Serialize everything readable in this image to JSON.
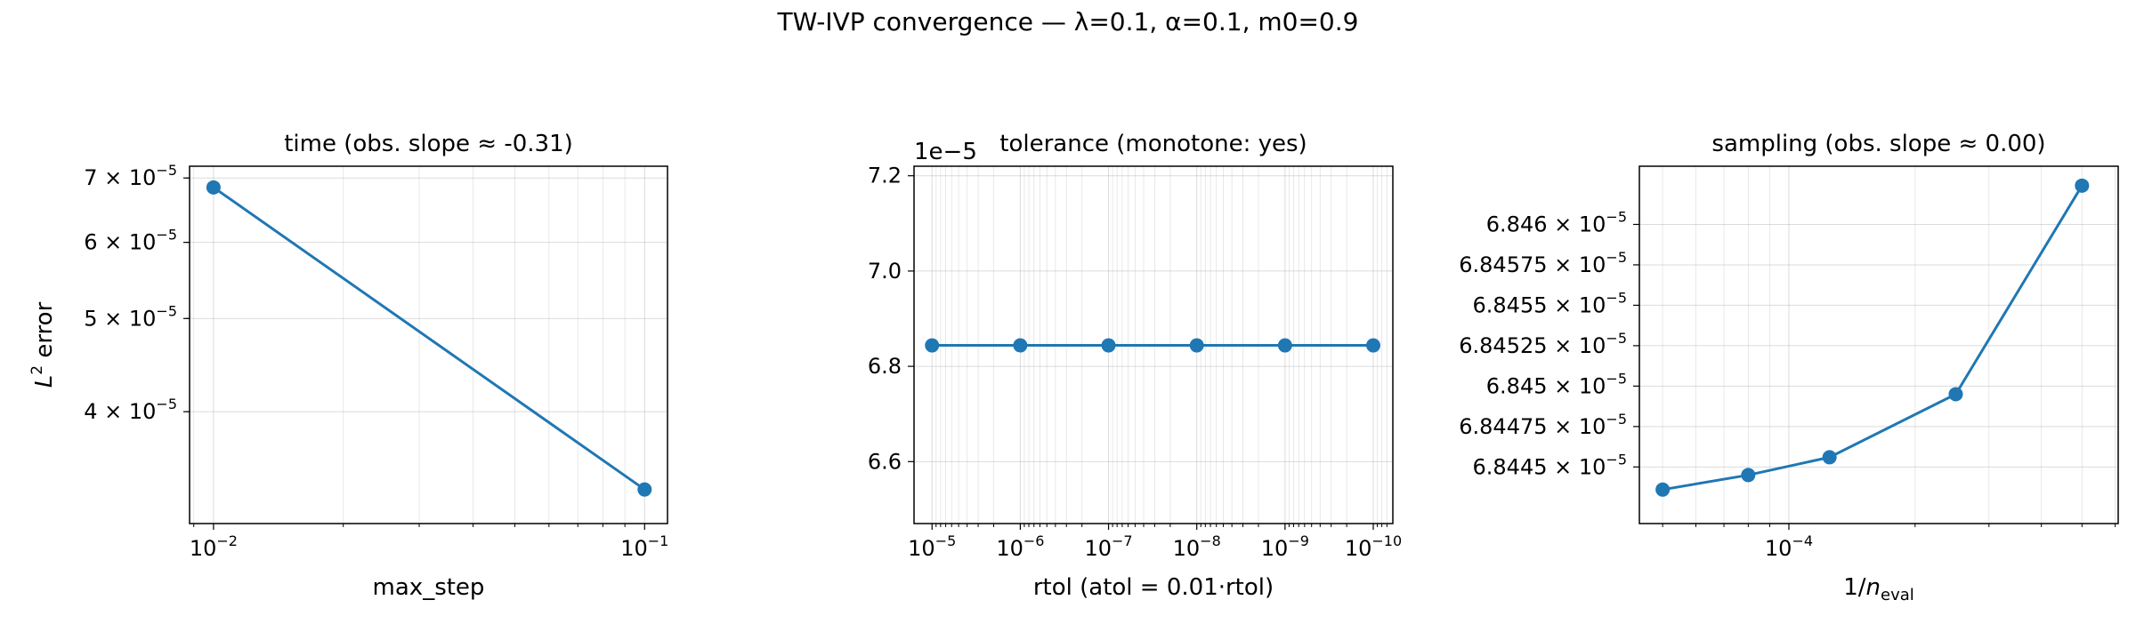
{
  "figure": {
    "title": "TW-IVP convergence — λ=0.1, α=0.1, m0=0.9"
  },
  "colors": {
    "series": "#1f77b4",
    "grid": "#b0b0b0",
    "axis": "#000000"
  },
  "chart_data": [
    {
      "type": "line",
      "title": "time (obs. slope ≈ -0.31)",
      "xlabel": "max_step",
      "ylabel_base": "L",
      "ylabel_sup": "2",
      "ylabel_rest": " error",
      "xscale": "log",
      "yscale": "log",
      "xlim": [
        0.0088,
        0.113
      ],
      "ylim": [
        3.06e-05,
        7.2e-05
      ],
      "x": [
        0.01,
        0.1
      ],
      "y": [
        6.844e-05,
        3.32e-05
      ],
      "x_ticks": [
        {
          "value": 0.01,
          "mant": "10",
          "exp": "−2"
        },
        {
          "value": 0.1,
          "mant": "10",
          "exp": "−1"
        }
      ],
      "y_ticks": [
        {
          "value": 4e-05,
          "mant": "4 × 10",
          "exp": "−5"
        },
        {
          "value": 5e-05,
          "mant": "5 × 10",
          "exp": "−5"
        },
        {
          "value": 6e-05,
          "mant": "6 × 10",
          "exp": "−5"
        },
        {
          "value": 7e-05,
          "mant": "7 × 10",
          "exp": "−5"
        }
      ],
      "grid": true
    },
    {
      "type": "line",
      "title": "tolerance (monotone: yes)",
      "xlabel": "rtol (atol = 0.01·rtol)",
      "offset_text": "1e−5",
      "xscale": "log",
      "xinverted": true,
      "yscale": "linear",
      "xlim": [
        1.6e-05,
        6e-11
      ],
      "ylim": [
        6.47e-05,
        7.22e-05
      ],
      "x": [
        1e-05,
        1e-06,
        1e-07,
        1e-08,
        1e-09,
        1e-10
      ],
      "y": [
        6.844e-05,
        6.844e-05,
        6.844e-05,
        6.844e-05,
        6.844e-05,
        6.844e-05
      ],
      "x_ticks": [
        {
          "value": 1e-05,
          "mant": "10",
          "exp": "−5"
        },
        {
          "value": 1e-06,
          "mant": "10",
          "exp": "−6"
        },
        {
          "value": 1e-07,
          "mant": "10",
          "exp": "−7"
        },
        {
          "value": 1e-08,
          "mant": "10",
          "exp": "−8"
        },
        {
          "value": 1e-09,
          "mant": "10",
          "exp": "−9"
        },
        {
          "value": 1e-10,
          "mant": "10",
          "exp": "−10"
        }
      ],
      "y_ticks": [
        {
          "value": 6.6e-05,
          "label": "6.6"
        },
        {
          "value": 6.8e-05,
          "label": "6.8"
        },
        {
          "value": 7e-05,
          "label": "7.0"
        },
        {
          "value": 7.2e-05,
          "label": "7.2"
        }
      ],
      "grid": true
    },
    {
      "type": "line",
      "title": "sampling (obs. slope ≈ 0.00)",
      "xlabel_base": "1/",
      "xlabel_var": "n",
      "xlabel_sub": "eval",
      "xscale": "log",
      "yscale": "log",
      "xlim": [
        4.4e-05,
        0.00061
      ],
      "ylim": [
        6.84415e-05,
        6.84636e-05
      ],
      "x": [
        5e-05,
        8e-05,
        0.000125,
        0.00025,
        0.0005
      ],
      "y": [
        6.84436e-05,
        6.84445e-05,
        6.84456e-05,
        6.84495e-05,
        6.84624e-05
      ],
      "x_ticks": [
        {
          "value": 0.0001,
          "mant": "10",
          "exp": "−4"
        }
      ],
      "y_ticks": [
        {
          "value": 6.8445e-05,
          "mant": "6.8445 × 10",
          "exp": "−5"
        },
        {
          "value": 6.84475e-05,
          "mant": "6.84475 × 10",
          "exp": "−5"
        },
        {
          "value": 6.845e-05,
          "mant": "6.845 × 10",
          "exp": "−5"
        },
        {
          "value": 6.84525e-05,
          "mant": "6.84525 × 10",
          "exp": "−5"
        },
        {
          "value": 6.8455e-05,
          "mant": "6.8455 × 10",
          "exp": "−5"
        },
        {
          "value": 6.84575e-05,
          "mant": "6.84575 × 10",
          "exp": "−5"
        },
        {
          "value": 6.846e-05,
          "mant": "6.846 × 10",
          "exp": "−5"
        }
      ],
      "grid": true
    }
  ]
}
